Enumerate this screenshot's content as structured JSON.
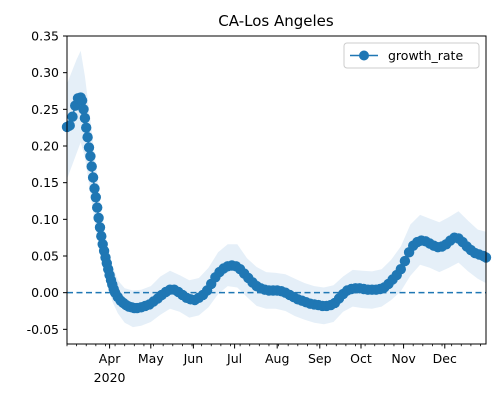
{
  "chart_data": {
    "type": "line",
    "title": "CA-Los Angeles",
    "xlabel": "",
    "ylabel": "",
    "x_ticks": [
      {
        "month": "Apr",
        "year": "2020",
        "date": "2020-04-01"
      },
      {
        "month": "May",
        "year": "",
        "date": "2020-05-01"
      },
      {
        "month": "Jun",
        "year": "",
        "date": "2020-06-01"
      },
      {
        "month": "Jul",
        "year": "",
        "date": "2020-07-01"
      },
      {
        "month": "Aug",
        "year": "",
        "date": "2020-08-01"
      },
      {
        "month": "Sep",
        "year": "",
        "date": "2020-09-01"
      },
      {
        "month": "Oct",
        "year": "",
        "date": "2020-10-01"
      },
      {
        "month": "Nov",
        "year": "",
        "date": "2020-11-01"
      },
      {
        "month": "Dec",
        "year": "",
        "date": "2020-12-01"
      }
    ],
    "xlim": [
      "2020-03-01",
      "2020-12-31"
    ],
    "ylim": [
      -0.07,
      0.35
    ],
    "y_ticks": [
      "-0.05",
      "0.00",
      "0.05",
      "0.10",
      "0.15",
      "0.20",
      "0.25",
      "0.30",
      "0.35"
    ],
    "y_tick_values": [
      -0.05,
      0.0,
      0.05,
      0.1,
      0.15,
      0.2,
      0.25,
      0.3,
      0.35
    ],
    "legend": {
      "position": "top-right",
      "entries": [
        "growth_rate"
      ]
    },
    "reference_line": {
      "y": 0.0,
      "style": "dashed"
    },
    "colors": {
      "series": "#1f77b4",
      "band": "#c6dbef"
    },
    "series": [
      {
        "name": "growth_rate",
        "points": [
          [
            "2020-03-01",
            0.226
          ],
          [
            "2020-03-03",
            0.228
          ],
          [
            "2020-03-05",
            0.24
          ],
          [
            "2020-03-07",
            0.255
          ],
          [
            "2020-03-09",
            0.265
          ],
          [
            "2020-03-11",
            0.266
          ],
          [
            "2020-03-12",
            0.262
          ],
          [
            "2020-03-13",
            0.25
          ],
          [
            "2020-03-14",
            0.238
          ],
          [
            "2020-03-15",
            0.225
          ],
          [
            "2020-03-16",
            0.212
          ],
          [
            "2020-03-17",
            0.198
          ],
          [
            "2020-03-18",
            0.186
          ],
          [
            "2020-03-19",
            0.172
          ],
          [
            "2020-03-20",
            0.157
          ],
          [
            "2020-03-21",
            0.142
          ],
          [
            "2020-03-22",
            0.13
          ],
          [
            "2020-03-23",
            0.116
          ],
          [
            "2020-03-24",
            0.102
          ],
          [
            "2020-03-25",
            0.089
          ],
          [
            "2020-03-26",
            0.077
          ],
          [
            "2020-03-27",
            0.066
          ],
          [
            "2020-03-28",
            0.057
          ],
          [
            "2020-03-29",
            0.048
          ],
          [
            "2020-03-30",
            0.04
          ],
          [
            "2020-03-31",
            0.032
          ],
          [
            "2020-04-01",
            0.024
          ],
          [
            "2020-04-02",
            0.017
          ],
          [
            "2020-04-03",
            0.011
          ],
          [
            "2020-04-04",
            0.005
          ],
          [
            "2020-04-05",
            0.0
          ],
          [
            "2020-04-07",
            -0.006
          ],
          [
            "2020-04-09",
            -0.011
          ],
          [
            "2020-04-11",
            -0.014
          ],
          [
            "2020-04-13",
            -0.017
          ],
          [
            "2020-04-15",
            -0.019
          ],
          [
            "2020-04-17",
            -0.02
          ],
          [
            "2020-04-19",
            -0.021
          ],
          [
            "2020-04-21",
            -0.021
          ],
          [
            "2020-04-24",
            -0.02
          ],
          [
            "2020-04-27",
            -0.018
          ],
          [
            "2020-04-30",
            -0.016
          ],
          [
            "2020-05-03",
            -0.012
          ],
          [
            "2020-05-06",
            -0.008
          ],
          [
            "2020-05-09",
            -0.003
          ],
          [
            "2020-05-12",
            0.001
          ],
          [
            "2020-05-15",
            0.004
          ],
          [
            "2020-05-18",
            0.004
          ],
          [
            "2020-05-21",
            0.001
          ],
          [
            "2020-05-24",
            -0.003
          ],
          [
            "2020-05-27",
            -0.007
          ],
          [
            "2020-05-30",
            -0.009
          ],
          [
            "2020-06-02",
            -0.01
          ],
          [
            "2020-06-05",
            -0.007
          ],
          [
            "2020-06-08",
            -0.003
          ],
          [
            "2020-06-11",
            0.003
          ],
          [
            "2020-06-14",
            0.012
          ],
          [
            "2020-06-17",
            0.021
          ],
          [
            "2020-06-20",
            0.028
          ],
          [
            "2020-06-23",
            0.033
          ],
          [
            "2020-06-26",
            0.036
          ],
          [
            "2020-06-29",
            0.037
          ],
          [
            "2020-07-02",
            0.036
          ],
          [
            "2020-07-05",
            0.032
          ],
          [
            "2020-07-08",
            0.026
          ],
          [
            "2020-07-11",
            0.02
          ],
          [
            "2020-07-14",
            0.014
          ],
          [
            "2020-07-17",
            0.009
          ],
          [
            "2020-07-20",
            0.006
          ],
          [
            "2020-07-23",
            0.004
          ],
          [
            "2020-07-26",
            0.003
          ],
          [
            "2020-07-29",
            0.003
          ],
          [
            "2020-08-01",
            0.003
          ],
          [
            "2020-08-04",
            0.002
          ],
          [
            "2020-08-07",
            0.0
          ],
          [
            "2020-08-10",
            -0.003
          ],
          [
            "2020-08-13",
            -0.006
          ],
          [
            "2020-08-16",
            -0.009
          ],
          [
            "2020-08-19",
            -0.011
          ],
          [
            "2020-08-22",
            -0.013
          ],
          [
            "2020-08-25",
            -0.015
          ],
          [
            "2020-08-28",
            -0.016
          ],
          [
            "2020-08-31",
            -0.017
          ],
          [
            "2020-09-03",
            -0.018
          ],
          [
            "2020-09-06",
            -0.018
          ],
          [
            "2020-09-09",
            -0.017
          ],
          [
            "2020-09-12",
            -0.014
          ],
          [
            "2020-09-15",
            -0.008
          ],
          [
            "2020-09-18",
            -0.002
          ],
          [
            "2020-09-21",
            0.003
          ],
          [
            "2020-09-24",
            0.005
          ],
          [
            "2020-09-27",
            0.006
          ],
          [
            "2020-09-30",
            0.006
          ],
          [
            "2020-10-03",
            0.005
          ],
          [
            "2020-10-06",
            0.004
          ],
          [
            "2020-10-09",
            0.004
          ],
          [
            "2020-10-12",
            0.004
          ],
          [
            "2020-10-15",
            0.005
          ],
          [
            "2020-10-18",
            0.007
          ],
          [
            "2020-10-21",
            0.012
          ],
          [
            "2020-10-24",
            0.018
          ],
          [
            "2020-10-27",
            0.024
          ],
          [
            "2020-10-30",
            0.032
          ],
          [
            "2020-11-02",
            0.043
          ],
          [
            "2020-11-05",
            0.055
          ],
          [
            "2020-11-08",
            0.064
          ],
          [
            "2020-11-11",
            0.069
          ],
          [
            "2020-11-14",
            0.071
          ],
          [
            "2020-11-17",
            0.07
          ],
          [
            "2020-11-20",
            0.067
          ],
          [
            "2020-11-23",
            0.064
          ],
          [
            "2020-11-26",
            0.062
          ],
          [
            "2020-11-29",
            0.063
          ],
          [
            "2020-12-02",
            0.066
          ],
          [
            "2020-12-05",
            0.071
          ],
          [
            "2020-12-08",
            0.075
          ],
          [
            "2020-12-11",
            0.074
          ],
          [
            "2020-12-14",
            0.069
          ],
          [
            "2020-12-17",
            0.063
          ],
          [
            "2020-12-20",
            0.058
          ],
          [
            "2020-12-23",
            0.054
          ],
          [
            "2020-12-26",
            0.052
          ],
          [
            "2020-12-29",
            0.05
          ],
          [
            "2020-12-31",
            0.048
          ]
        ]
      }
    ],
    "band": {
      "points": [
        [
          "2020-03-01",
          0.155,
          0.285
        ],
        [
          "2020-03-08",
          0.19,
          0.318
        ],
        [
          "2020-03-11",
          0.205,
          0.33
        ],
        [
          "2020-03-14",
          0.185,
          0.295
        ],
        [
          "2020-03-18",
          0.135,
          0.235
        ],
        [
          "2020-03-22",
          0.088,
          0.175
        ],
        [
          "2020-03-26",
          0.048,
          0.112
        ],
        [
          "2020-03-30",
          0.018,
          0.068
        ],
        [
          "2020-04-03",
          -0.012,
          0.037
        ],
        [
          "2020-04-07",
          -0.028,
          0.017
        ],
        [
          "2020-04-12",
          -0.041,
          0.006
        ],
        [
          "2020-04-18",
          -0.047,
          0.003
        ],
        [
          "2020-04-24",
          -0.045,
          0.004
        ],
        [
          "2020-05-01",
          -0.04,
          0.009
        ],
        [
          "2020-05-08",
          -0.03,
          0.022
        ],
        [
          "2020-05-15",
          -0.022,
          0.03
        ],
        [
          "2020-05-22",
          -0.026,
          0.024
        ],
        [
          "2020-05-29",
          -0.034,
          0.017
        ],
        [
          "2020-06-05",
          -0.031,
          0.02
        ],
        [
          "2020-06-12",
          -0.02,
          0.034
        ],
        [
          "2020-06-19",
          -0.002,
          0.055
        ],
        [
          "2020-06-26",
          0.009,
          0.066
        ],
        [
          "2020-07-03",
          0.007,
          0.066
        ],
        [
          "2020-07-10",
          -0.006,
          0.047
        ],
        [
          "2020-07-17",
          -0.018,
          0.035
        ],
        [
          "2020-07-24",
          -0.022,
          0.028
        ],
        [
          "2020-07-31",
          -0.022,
          0.027
        ],
        [
          "2020-08-07",
          -0.025,
          0.025
        ],
        [
          "2020-08-14",
          -0.032,
          0.019
        ],
        [
          "2020-08-21",
          -0.037,
          0.013
        ],
        [
          "2020-08-28",
          -0.041,
          0.009
        ],
        [
          "2020-09-04",
          -0.043,
          0.007
        ],
        [
          "2020-09-11",
          -0.04,
          0.01
        ],
        [
          "2020-09-18",
          -0.026,
          0.022
        ],
        [
          "2020-09-25",
          -0.019,
          0.031
        ],
        [
          "2020-10-02",
          -0.021,
          0.03
        ],
        [
          "2020-10-09",
          -0.022,
          0.029
        ],
        [
          "2020-10-16",
          -0.019,
          0.032
        ],
        [
          "2020-10-23",
          -0.01,
          0.045
        ],
        [
          "2020-10-30",
          0.002,
          0.063
        ],
        [
          "2020-11-06",
          0.023,
          0.093
        ],
        [
          "2020-11-13",
          0.038,
          0.106
        ],
        [
          "2020-11-20",
          0.034,
          0.101
        ],
        [
          "2020-11-27",
          0.028,
          0.096
        ],
        [
          "2020-12-04",
          0.034,
          0.103
        ],
        [
          "2020-12-11",
          0.041,
          0.111
        ],
        [
          "2020-12-18",
          0.029,
          0.098
        ],
        [
          "2020-12-25",
          0.019,
          0.086
        ],
        [
          "2020-12-31",
          0.013,
          0.083
        ]
      ]
    }
  }
}
